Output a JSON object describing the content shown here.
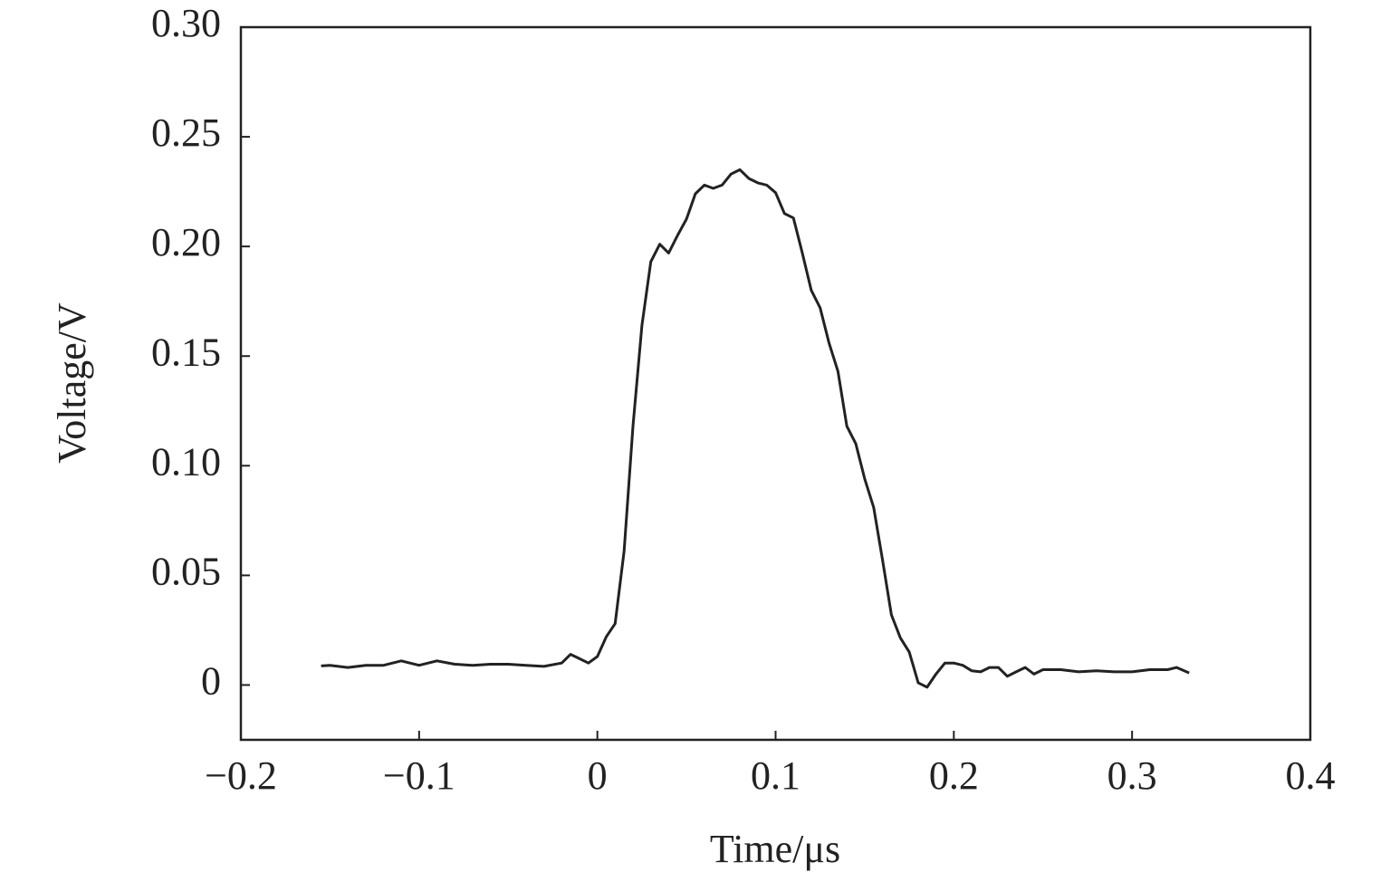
{
  "chart_data": {
    "type": "line",
    "xlabel": "Time/μs",
    "ylabel": "Voltage/V",
    "x": [
      -0.155,
      -0.15,
      -0.14,
      -0.13,
      -0.12,
      -0.11,
      -0.1,
      -0.09,
      -0.08,
      -0.07,
      -0.06,
      -0.05,
      -0.04,
      -0.03,
      -0.02,
      -0.015,
      -0.01,
      -0.005,
      0,
      0.005,
      0.01,
      0.015,
      0.02,
      0.025,
      0.03,
      0.035,
      0.04,
      0.045,
      0.05,
      0.055,
      0.06,
      0.065,
      0.07,
      0.075,
      0.08,
      0.085,
      0.09,
      0.095,
      0.1,
      0.105,
      0.11,
      0.115,
      0.12,
      0.125,
      0.13,
      0.135,
      0.14,
      0.145,
      0.15,
      0.155,
      0.16,
      0.165,
      0.17,
      0.175,
      0.18,
      0.185,
      0.19,
      0.195,
      0.2,
      0.205,
      0.21,
      0.215,
      0.22,
      0.225,
      0.23,
      0.235,
      0.24,
      0.245,
      0.25,
      0.26,
      0.27,
      0.28,
      0.29,
      0.3,
      0.31,
      0.32,
      0.325,
      0.332
    ],
    "values": [
      0.0087,
      0.009,
      0.008,
      0.009,
      0.009,
      0.011,
      0.009,
      0.011,
      0.0095,
      0.009,
      0.0095,
      0.0095,
      0.009,
      0.0085,
      0.01,
      0.014,
      0.012,
      0.01,
      0.013,
      0.022,
      0.028,
      0.061,
      0.118,
      0.164,
      0.193,
      0.201,
      0.197,
      0.205,
      0.2125,
      0.224,
      0.228,
      0.2265,
      0.228,
      0.233,
      0.235,
      0.231,
      0.229,
      0.228,
      0.2245,
      0.215,
      0.213,
      0.197,
      0.18,
      0.172,
      0.156,
      0.143,
      0.118,
      0.11,
      0.094,
      0.081,
      0.057,
      0.032,
      0.0215,
      0.015,
      0.001,
      -0.001,
      0.005,
      0.01,
      0.01,
      0.009,
      0.0065,
      0.006,
      0.008,
      0.008,
      0.004,
      0.006,
      0.008,
      0.005,
      0.007,
      0.007,
      0.006,
      0.0065,
      0.006,
      0.006,
      0.007,
      0.007,
      0.008,
      0.0055
    ],
    "color": "#222222",
    "xlim": [
      -0.2,
      0.4
    ],
    "xticks": [
      {
        "value": -0.2,
        "label": "−0.2"
      },
      {
        "value": -0.1,
        "label": "−0.1"
      },
      0,
      0.1,
      0.2,
      0.3,
      0.4
    ],
    "ylim": [
      -0.025,
      0.3
    ],
    "yticks": [
      0,
      0.05,
      {
        "value": 0.1,
        "label": "0.10"
      },
      0.15,
      {
        "value": 0.2,
        "label": "0.20"
      },
      0.25,
      {
        "value": 0.3,
        "label": "0.30"
      }
    ]
  }
}
